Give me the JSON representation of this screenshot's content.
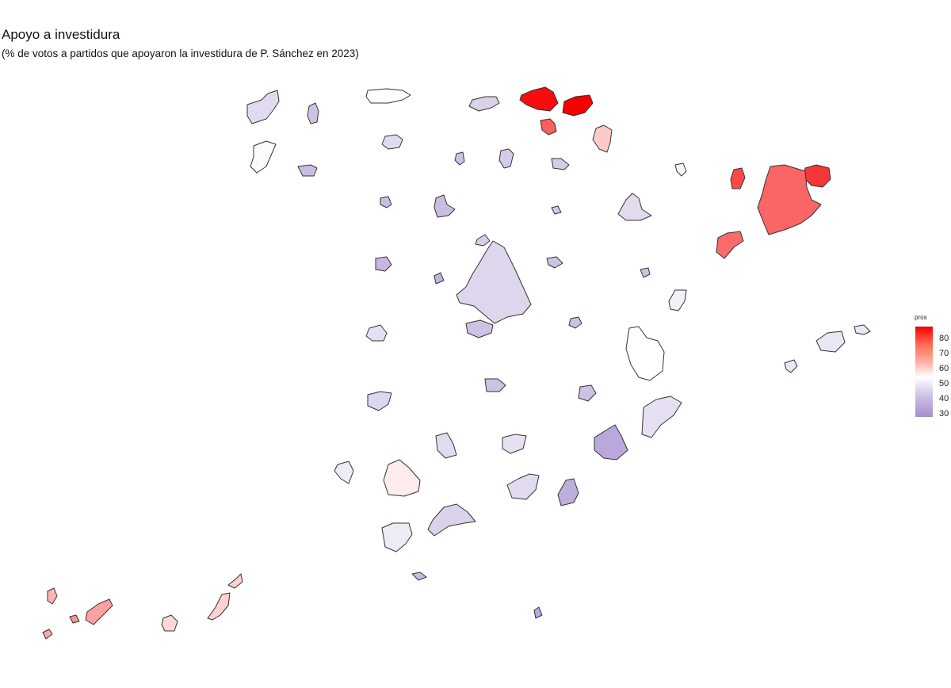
{
  "title": "Apoyo a investidura",
  "subtitle": "(% de votos a partidos que apoyaron la investidura de P. Sánchez en 2023)",
  "legend": {
    "title": "pros",
    "ticks": [
      "80",
      "70",
      "60",
      "50",
      "40",
      "30"
    ],
    "tick_values": [
      80,
      70,
      60,
      50,
      40,
      30
    ],
    "range": [
      28,
      88
    ],
    "colors": {
      "high": "#f70000",
      "mid": "#ffffff",
      "low": "#a58fce"
    }
  },
  "chart_data": {
    "type": "choropleth",
    "variable": "pros",
    "regions": [
      {
        "id": "a-coruna",
        "value": 43
      },
      {
        "id": "lugo",
        "value": 38
      },
      {
        "id": "asturias",
        "value": 50
      },
      {
        "id": "cantabria",
        "value": 41
      },
      {
        "id": "bizkaia",
        "value": 86
      },
      {
        "id": "gipuzkoa",
        "value": 88
      },
      {
        "id": "araba",
        "value": 74
      },
      {
        "id": "navarra",
        "value": 58
      },
      {
        "id": "pontevedra",
        "value": 49
      },
      {
        "id": "ourense",
        "value": 37
      },
      {
        "id": "leon",
        "value": 43
      },
      {
        "id": "palencia",
        "value": 38
      },
      {
        "id": "burgos",
        "value": 40
      },
      {
        "id": "la-rioja",
        "value": 40
      },
      {
        "id": "huesca",
        "value": 48
      },
      {
        "id": "girona",
        "value": 80
      },
      {
        "id": "lleida",
        "value": 77
      },
      {
        "id": "barcelona",
        "value": 73
      },
      {
        "id": "tarragona",
        "value": 72
      },
      {
        "id": "zamora",
        "value": 37
      },
      {
        "id": "valladolid",
        "value": 37
      },
      {
        "id": "soria",
        "value": 39
      },
      {
        "id": "zaragoza",
        "value": 43
      },
      {
        "id": "segovia",
        "value": 40
      },
      {
        "id": "salamanca",
        "value": 36
      },
      {
        "id": "avila",
        "value": 35
      },
      {
        "id": "guadalajara",
        "value": 38
      },
      {
        "id": "madrid",
        "value": 42
      },
      {
        "id": "teruel",
        "value": 38
      },
      {
        "id": "castellon",
        "value": 47
      },
      {
        "id": "caceres",
        "value": 44
      },
      {
        "id": "toledo",
        "value": 38
      },
      {
        "id": "cuenca",
        "value": 38
      },
      {
        "id": "valencia",
        "value": 50
      },
      {
        "id": "baleares",
        "value": 45
      },
      {
        "id": "badajoz",
        "value": 42
      },
      {
        "id": "ciudad-real",
        "value": 38
      },
      {
        "id": "albacete",
        "value": 38
      },
      {
        "id": "alicante",
        "value": 44
      },
      {
        "id": "huelva",
        "value": 46
      },
      {
        "id": "sevilla",
        "value": 53
      },
      {
        "id": "cordoba",
        "value": 43
      },
      {
        "id": "jaen",
        "value": 44
      },
      {
        "id": "murcia",
        "value": 33
      },
      {
        "id": "granada",
        "value": 43
      },
      {
        "id": "almeria",
        "value": 34
      },
      {
        "id": "cadiz",
        "value": 46
      },
      {
        "id": "malaga",
        "value": 41
      },
      {
        "id": "ceuta",
        "value": 37
      },
      {
        "id": "melilla",
        "value": 33
      },
      {
        "id": "la-palma",
        "value": 61
      },
      {
        "id": "tenerife",
        "value": 64
      },
      {
        "id": "la-gomera",
        "value": 66
      },
      {
        "id": "el-hierro",
        "value": 63
      },
      {
        "id": "gran-canaria",
        "value": 56
      },
      {
        "id": "fuerteventura",
        "value": 57
      },
      {
        "id": "lanzarote",
        "value": 57
      }
    ]
  }
}
